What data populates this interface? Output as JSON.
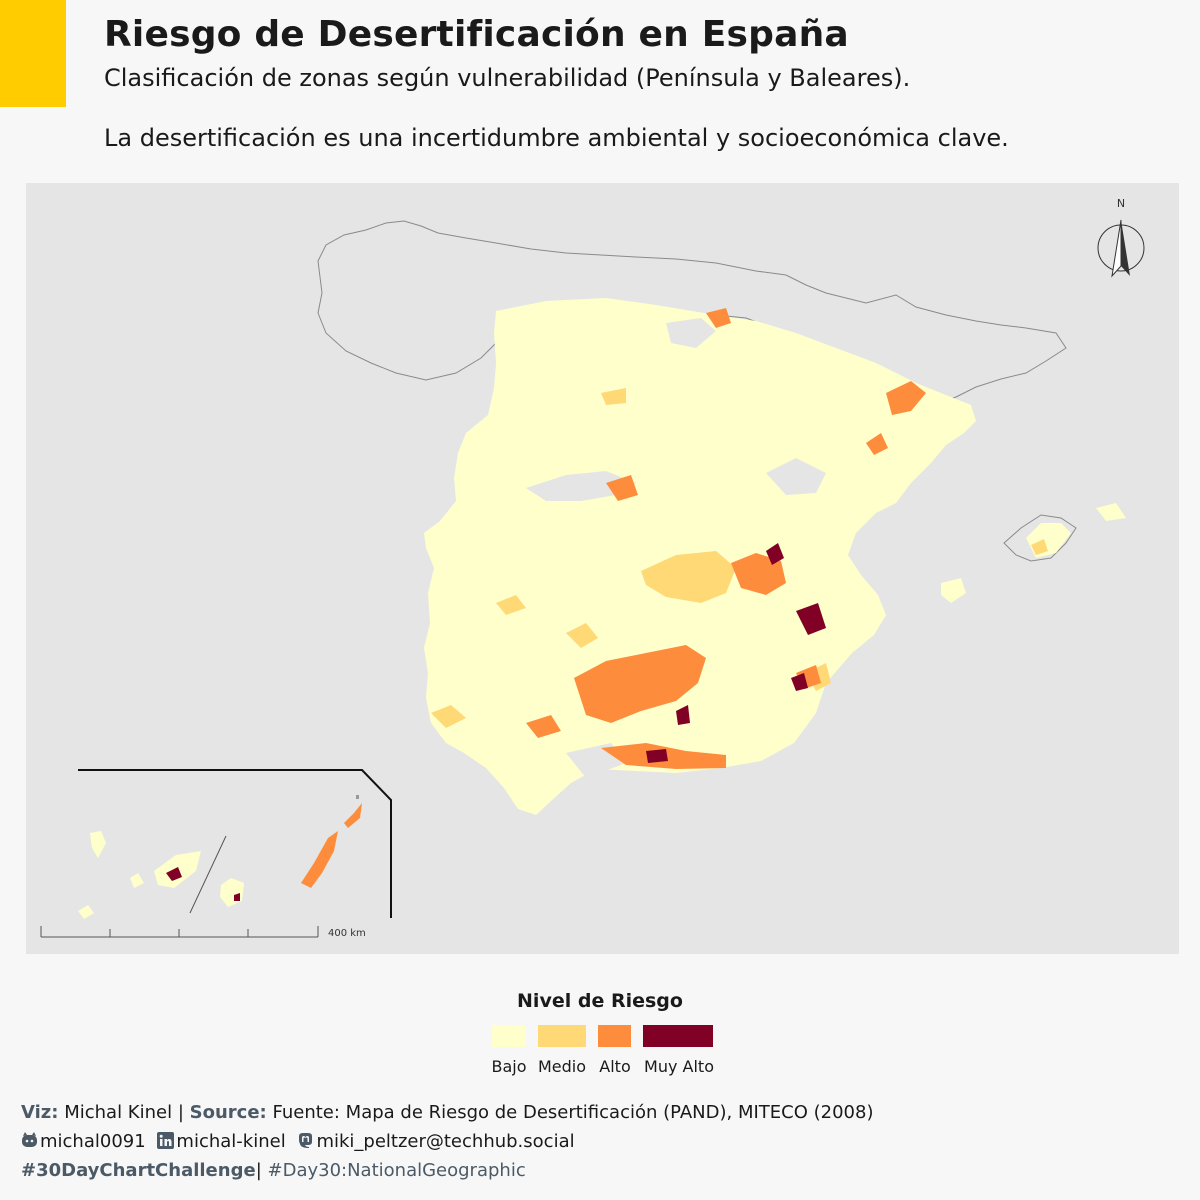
{
  "colors": {
    "accent": "#ffcc00",
    "map_background": "#e5e5e5",
    "outline": "#8a8a8a",
    "bajo": "#ffffcc",
    "medio": "#fed976",
    "alto": "#fd8d3c",
    "muy_alto": "#800026"
  },
  "header": {
    "title": "Riesgo de Desertificación en España",
    "subtitle": "Clasificación de zonas según vulnerabilidad (Península y Baleares).",
    "description": "La desertificación es una incertidumbre ambiental y socioeconómica clave."
  },
  "map": {
    "north_label": "N",
    "scale_label": "400 km",
    "icons": [
      "north-arrow-icon"
    ]
  },
  "legend": {
    "title": "Nivel de Riesgo",
    "items": [
      {
        "label": "Bajo",
        "color": "#ffffcc"
      },
      {
        "label": "Medio",
        "color": "#fed976"
      },
      {
        "label": "Alto",
        "color": "#fd8d3c"
      },
      {
        "label": "Muy Alto",
        "color": "#800026"
      }
    ]
  },
  "credits": {
    "viz_label": "Viz:",
    "viz_name": "Michal Kinel",
    "separator": "|",
    "source_label": "Source:",
    "source_text": "Fuente: Mapa de Riesgo de Desertificación (PAND), MITECO (2008)",
    "github_icon": "github-icon",
    "github": "michal0091",
    "linkedin_icon": "linkedin-icon",
    "linkedin": "michal-kinel",
    "mastodon_icon": "mastodon-icon",
    "mastodon": "miki_peltzer@techhub.social",
    "hashtag_main": "#30DayChartChallenge",
    "hashtag_day": "#Day30:NationalGeographic"
  }
}
